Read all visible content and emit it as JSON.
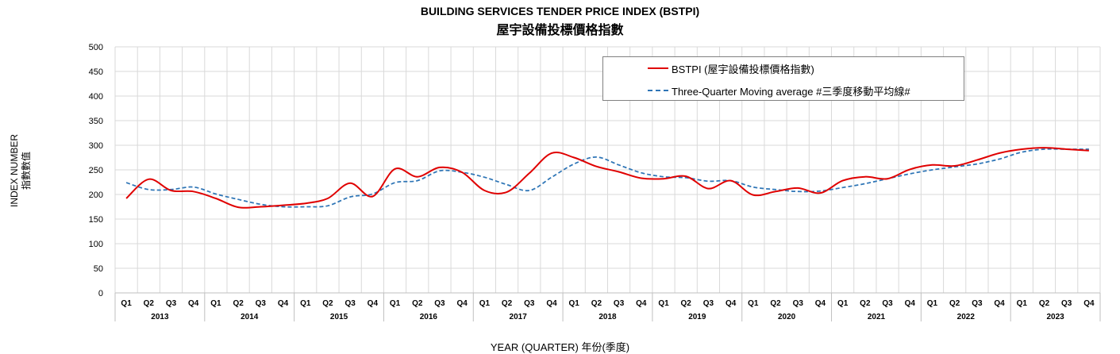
{
  "chart_data": {
    "type": "line",
    "title": "BUILDING SERVICES TENDER PRICE INDEX (BSTPI)",
    "subtitle": "屋宇設備投標價格指數",
    "xlabel": "YEAR (QUARTER) 年份(季度)",
    "ylabel_en": "INDEX NUMBER",
    "ylabel_zh": "指數數值",
    "ylim": [
      0,
      500
    ],
    "yticks": [
      "0",
      "50",
      "100",
      "150",
      "200",
      "250",
      "300",
      "350",
      "400",
      "450",
      "500"
    ],
    "quarters": [
      "Q1",
      "Q2",
      "Q3",
      "Q4"
    ],
    "years": [
      "2013",
      "2014",
      "2015",
      "2016",
      "2017",
      "2018",
      "2019",
      "2020",
      "2021",
      "2022",
      "2023"
    ],
    "grid": true,
    "legend_position": "top-right",
    "series": [
      {
        "name": "BSTPI (屋宇設備投標價格指數)",
        "color": "#e00000",
        "style": "solid",
        "values": [
          192,
          231,
          208,
          206,
          192,
          174,
          175,
          178,
          182,
          192,
          223,
          196,
          252,
          236,
          255,
          245,
          208,
          205,
          243,
          284,
          275,
          257,
          246,
          233,
          232,
          237,
          212,
          228,
          199,
          206,
          213,
          203,
          228,
          236,
          232,
          251,
          260,
          258,
          270,
          284,
          292,
          295,
          292,
          289
        ]
      },
      {
        "name": "Three-Quarter Moving average #三季度移動平均線#",
        "color": "#2e75b6",
        "style": "dash",
        "values": [
          224,
          210,
          210,
          215,
          201,
          190,
          180,
          175,
          175,
          177,
          195,
          201,
          224,
          228,
          248,
          245,
          235,
          220,
          208,
          235,
          262,
          276,
          260,
          244,
          236,
          234,
          227,
          228,
          215,
          210,
          206,
          207,
          214,
          222,
          232,
          242,
          250,
          256,
          262,
          272,
          286,
          292,
          292,
          292
        ]
      }
    ]
  }
}
